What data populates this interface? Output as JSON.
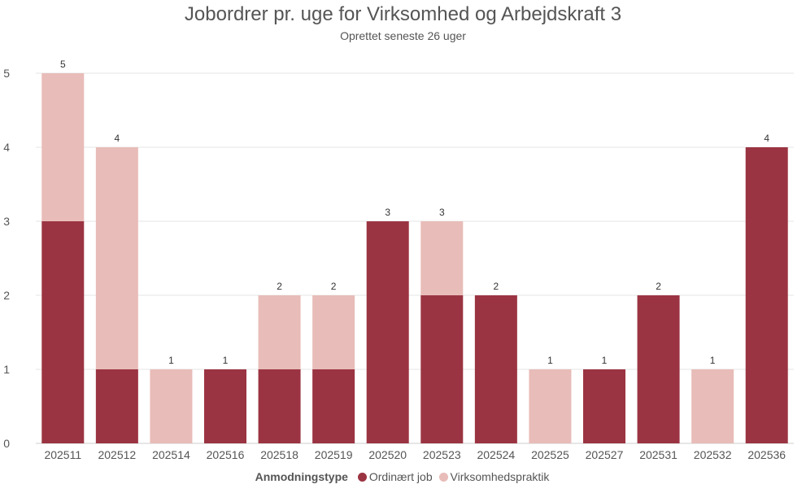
{
  "chart_data": {
    "type": "bar",
    "stacked": true,
    "title": "Jobordrer pr. uge for Virksomhed og Arbejdskraft 3",
    "subtitle": "Oprettet seneste 26 uger",
    "categories": [
      "202511",
      "202512",
      "202514",
      "202516",
      "202518",
      "202519",
      "202520",
      "202523",
      "202524",
      "202525",
      "202527",
      "202531",
      "202532",
      "202536"
    ],
    "series": [
      {
        "name": "Ordinært job",
        "color": "#9b3442",
        "values": [
          3,
          1,
          0,
          1,
          1,
          1,
          3,
          2,
          2,
          0,
          1,
          2,
          0,
          4
        ]
      },
      {
        "name": "Virksomhedspraktik",
        "color": "#e8bcb8",
        "values": [
          2,
          3,
          1,
          0,
          1,
          1,
          0,
          1,
          0,
          1,
          0,
          0,
          1,
          0
        ]
      }
    ],
    "totals": [
      5,
      4,
      1,
      1,
      2,
      2,
      3,
      3,
      2,
      1,
      1,
      2,
      1,
      4
    ],
    "ylim": [
      0,
      5
    ],
    "yticks": [
      0,
      1,
      2,
      3,
      4,
      5
    ],
    "grid": true,
    "legend": {
      "title": "Anmodningstype",
      "position": "bottom"
    }
  }
}
